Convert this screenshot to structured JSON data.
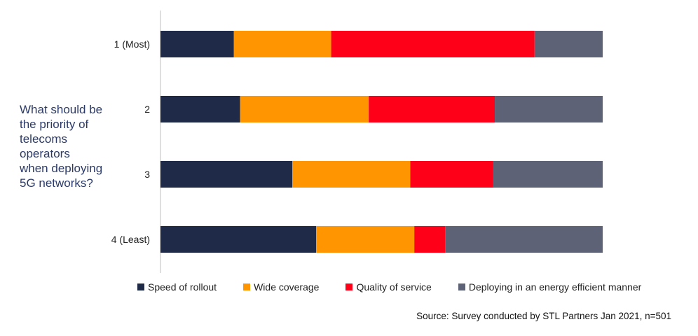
{
  "question": "What should be\nthe priority of\ntelecoms\noperators\nwhen deploying\n5G networks?",
  "source": "Source: Survey conducted by STL Partners Jan 2021, n=501",
  "chart_data": {
    "type": "bar",
    "orientation": "horizontal",
    "stacked": "percent",
    "title": "",
    "xlabel": "",
    "ylabel": "",
    "xlim": [
      0,
      100
    ],
    "grid": false,
    "legend_position": "bottom",
    "categories": [
      "1 (Most)",
      "2",
      "3",
      "4 (Least)"
    ],
    "series": [
      {
        "name": "Speed of rollout",
        "color": "#1f2a48",
        "values": [
          16.6,
          18.0,
          29.8,
          35.2
        ]
      },
      {
        "name": "Wide coverage",
        "color": "#ff9500",
        "values": [
          22.0,
          29.1,
          26.7,
          22.2
        ]
      },
      {
        "name": "Quality of service",
        "color": "#ff0019",
        "values": [
          46.0,
          28.5,
          18.7,
          7.0
        ]
      },
      {
        "name": "Deploying in an energy efficient manner",
        "color": "#5e6277",
        "values": [
          15.4,
          24.4,
          24.8,
          35.6
        ]
      }
    ]
  }
}
